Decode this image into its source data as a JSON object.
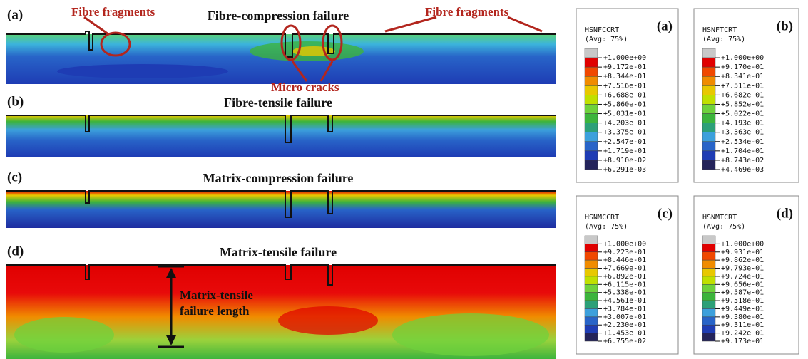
{
  "panels": [
    {
      "label": "(a)",
      "title": "Fibre-compression failure"
    },
    {
      "label": "(b)",
      "title": "Fibre-tensile failure"
    },
    {
      "label": "(c)",
      "title": "Matrix-compression failure"
    },
    {
      "label": "(d)",
      "title": "Matrix-tensile failure"
    }
  ],
  "annotations": {
    "fibre_fragments_left": "Fibre fragments",
    "fibre_fragments_right": "Fibre fragments",
    "micro_cracks": "Micro cracks",
    "failure_length": [
      "Matrix-tensile",
      "failure length"
    ]
  },
  "legends": [
    {
      "label": "(a)",
      "variable": "HSNFCCRT",
      "avg": "(Avg: 75%)",
      "values": [
        "+1.000e+00",
        "+9.172e-01",
        "+8.344e-01",
        "+7.516e-01",
        "+6.688e-01",
        "+5.860e-01",
        "+5.031e-01",
        "+4.203e-01",
        "+3.375e-01",
        "+2.547e-01",
        "+1.719e-01",
        "+8.910e-02",
        "+6.291e-03"
      ]
    },
    {
      "label": "(b)",
      "variable": "HSNFTCRT",
      "avg": "(Avg: 75%)",
      "values": [
        "+1.000e+00",
        "+9.170e-01",
        "+8.341e-01",
        "+7.511e-01",
        "+6.682e-01",
        "+5.852e-01",
        "+5.022e-01",
        "+4.193e-01",
        "+3.363e-01",
        "+2.534e-01",
        "+1.704e-01",
        "+8.743e-02",
        "+4.469e-03"
      ]
    },
    {
      "label": "(c)",
      "variable": "HSNMCCRT",
      "avg": "(Avg: 75%)",
      "values": [
        "+1.000e+00",
        "+9.223e-01",
        "+8.446e-01",
        "+7.669e-01",
        "+6.892e-01",
        "+6.115e-01",
        "+5.338e-01",
        "+4.561e-01",
        "+3.784e-01",
        "+3.007e-01",
        "+2.230e-01",
        "+1.453e-01",
        "+6.755e-02"
      ]
    },
    {
      "label": "(d)",
      "variable": "HSNMTCRT",
      "avg": "(Avg: 75%)",
      "values": [
        "+1.000e+00",
        "+9.931e-01",
        "+9.862e-01",
        "+9.793e-01",
        "+9.724e-01",
        "+9.656e-01",
        "+9.587e-01",
        "+9.518e-01",
        "+9.449e-01",
        "+9.380e-01",
        "+9.311e-01",
        "+9.242e-01",
        "+9.173e-01"
      ]
    }
  ]
}
